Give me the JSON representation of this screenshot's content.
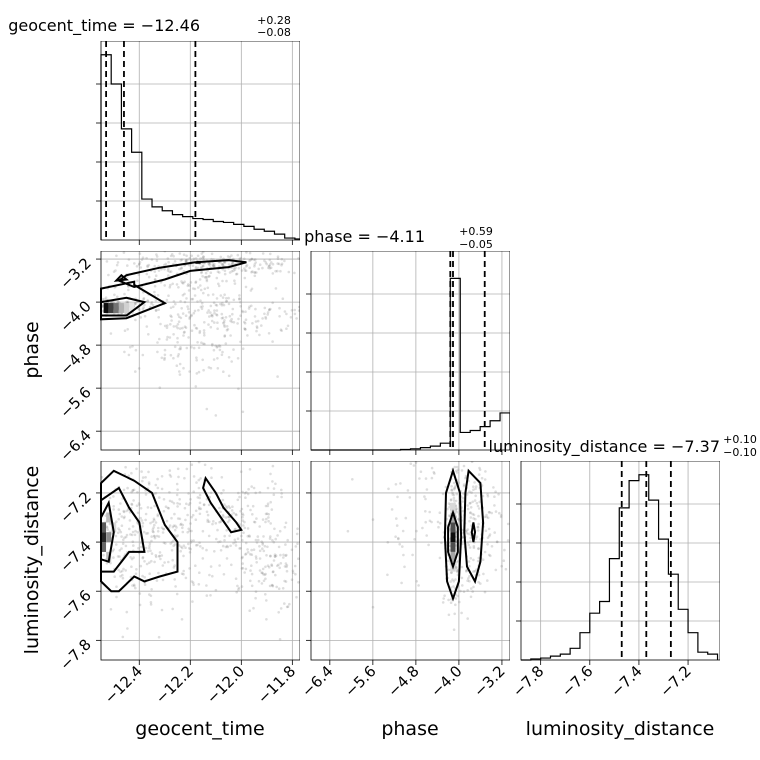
{
  "chart_data": {
    "type": "corner",
    "parameters": [
      "geocent_time",
      "phase",
      "luminosity_distance"
    ],
    "axis_labels": {
      "geocent_time": "geocent_time",
      "phase": "phase",
      "luminosity_distance": "luminosity_distance"
    },
    "ranges": {
      "geocent_time": [
        -12.55,
        -11.77
      ],
      "phase": [
        -6.75,
        -3.05
      ],
      "luminosity_distance": [
        -7.88,
        -7.07
      ]
    },
    "ticks": {
      "geocent_time": [
        -12.4,
        -12.2,
        -12.0,
        -11.8
      ],
      "phase": [
        -6.4,
        -5.6,
        -4.8,
        -4.0,
        -3.2
      ],
      "luminosity_distance": [
        -7.8,
        -7.6,
        -7.4,
        -7.2
      ]
    },
    "tick_labels": {
      "geocent_time": [
        "−12.4",
        "−12.2",
        "−12.0",
        "−11.8"
      ],
      "phase": [
        "−6.4",
        "−5.6",
        "−4.8",
        "−4.0",
        "−3.2"
      ],
      "luminosity_distance": [
        "−7.8",
        "−7.6",
        "−7.4",
        "−7.2"
      ]
    },
    "titles": {
      "geocent_time": {
        "prefix": "geocent_time = −12.46",
        "plus": "+0.28",
        "minus": "−0.08"
      },
      "phase": {
        "prefix": "phase = −4.11",
        "plus": "+0.59",
        "minus": "−0.05"
      },
      "luminosity_distance": {
        "prefix": "luminosity_distance = −7.37",
        "plus": "+0.10",
        "minus": "−0.10"
      }
    },
    "quantiles": {
      "geocent_time": [
        -12.53,
        -12.46,
        -12.18
      ],
      "phase": [
        -4.16,
        -4.11,
        -3.52
      ],
      "luminosity_distance": [
        -7.47,
        -7.37,
        -7.27
      ]
    },
    "histograms": {
      "geocent_time": {
        "edges": [
          -12.55,
          -12.53,
          -12.51,
          -12.49,
          -12.47,
          -12.45,
          -12.43,
          -12.41,
          -12.39,
          -12.37,
          -12.35,
          -12.33,
          -12.31,
          -12.29,
          -12.27,
          -12.25,
          -12.23,
          -12.21,
          -12.19,
          -12.17,
          -12.15,
          -12.13,
          -12.11,
          -12.09,
          -12.07,
          -12.05,
          -12.03,
          -12.01,
          -11.99,
          -11.97,
          -11.95,
          -11.93,
          -11.91,
          -11.89,
          -11.87,
          -11.85,
          -11.83,
          -11.81,
          -11.79,
          -11.77
        ],
        "counts": [
          0.95,
          0.95,
          0.8,
          0.8,
          0.57,
          0.57,
          0.45,
          0.45,
          0.21,
          0.21,
          0.17,
          0.17,
          0.15,
          0.15,
          0.13,
          0.13,
          0.12,
          0.12,
          0.11,
          0.11,
          0.105,
          0.105,
          0.095,
          0.095,
          0.09,
          0.09,
          0.08,
          0.08,
          0.07,
          0.07,
          0.055,
          0.055,
          0.045,
          0.045,
          0.03,
          0.03,
          0.01,
          0.01,
          0.005
        ]
      },
      "phase": {
        "edges": [
          -6.75,
          -6.565,
          -6.38,
          -6.195,
          -6.01,
          -5.825,
          -5.64,
          -5.455,
          -5.27,
          -5.085,
          -4.9,
          -4.715,
          -4.53,
          -4.345,
          -4.16,
          -3.975,
          -3.79,
          -3.605,
          -3.42,
          -3.235,
          -3.05
        ],
        "counts": [
          0,
          0,
          0,
          0,
          0,
          0,
          0,
          0,
          0,
          0.003,
          0.006,
          0.012,
          0.02,
          0.035,
          0.88,
          0.09,
          0.1,
          0.12,
          0.15,
          0.19
        ]
      },
      "luminosity_distance": {
        "edges": [
          -7.88,
          -7.84,
          -7.8,
          -7.76,
          -7.72,
          -7.68,
          -7.64,
          -7.6,
          -7.56,
          -7.52,
          -7.48,
          -7.44,
          -7.4,
          -7.36,
          -7.32,
          -7.28,
          -7.24,
          -7.2,
          -7.16,
          -7.12,
          -7.08
        ],
        "counts": [
          0.0,
          0.005,
          0.01,
          0.02,
          0.03,
          0.06,
          0.14,
          0.24,
          0.3,
          0.52,
          0.78,
          0.92,
          0.95,
          0.82,
          0.62,
          0.44,
          0.26,
          0.14,
          0.04,
          0.03
        ]
      }
    },
    "density_cells": {
      "geocent_time_phase": [
        {
          "x": -12.53,
          "y": -4.11,
          "v": 0.95
        },
        {
          "x": -12.51,
          "y": -4.11,
          "v": 0.75
        },
        {
          "x": -12.49,
          "y": -4.11,
          "v": 0.55
        },
        {
          "x": -12.47,
          "y": -4.11,
          "v": 0.3
        },
        {
          "x": -12.45,
          "y": -4.11,
          "v": 0.18
        },
        {
          "x": -12.43,
          "y": -4.11,
          "v": 0.1
        }
      ],
      "geocent_time_luminosity_distance": [
        {
          "x": -12.54,
          "y": -7.38,
          "v": 0.85
        },
        {
          "x": -12.54,
          "y": -7.34,
          "v": 0.65
        },
        {
          "x": -12.54,
          "y": -7.42,
          "v": 0.6
        },
        {
          "x": -12.52,
          "y": -7.38,
          "v": 0.45
        },
        {
          "x": -12.52,
          "y": -7.3,
          "v": 0.25
        },
        {
          "x": -12.52,
          "y": -7.46,
          "v": 0.25
        },
        {
          "x": -12.5,
          "y": -7.34,
          "v": 0.15
        }
      ],
      "phase_luminosity_distance": [
        {
          "x": -4.11,
          "y": -7.38,
          "v": 0.95
        },
        {
          "x": -4.11,
          "y": -7.34,
          "v": 0.7
        },
        {
          "x": -4.11,
          "y": -7.42,
          "v": 0.7
        },
        {
          "x": -4.11,
          "y": -7.3,
          "v": 0.35
        },
        {
          "x": -4.11,
          "y": -7.46,
          "v": 0.35
        },
        {
          "x": -4.11,
          "y": -7.26,
          "v": 0.15
        },
        {
          "x": -4.11,
          "y": -7.5,
          "v": 0.15
        }
      ]
    },
    "contours": {
      "geocent_time_phase": [
        [
          [
            -12.55,
            -4.0
          ],
          [
            -12.45,
            -3.92
          ],
          [
            -12.38,
            -4.0
          ],
          [
            -12.45,
            -4.25
          ],
          [
            -12.55,
            -4.25
          ]
        ],
        [
          [
            -12.55,
            -3.75
          ],
          [
            -12.42,
            -3.62
          ],
          [
            -12.42,
            -3.68
          ],
          [
            -12.3,
            -4.02
          ],
          [
            -12.45,
            -4.3
          ],
          [
            -12.55,
            -4.32
          ]
        ],
        [
          [
            -12.45,
            -3.5
          ],
          [
            -12.32,
            -3.36
          ],
          [
            -12.18,
            -3.26
          ],
          [
            -12.05,
            -3.22
          ],
          [
            -11.98,
            -3.26
          ],
          [
            -12.05,
            -3.35
          ],
          [
            -12.2,
            -3.42
          ],
          [
            -12.3,
            -3.58
          ],
          [
            -12.42,
            -3.72
          ],
          [
            -12.48,
            -3.6
          ]
        ],
        [
          [
            -12.49,
            -3.6
          ],
          [
            -12.47,
            -3.5
          ],
          [
            -12.45,
            -3.58
          ]
        ],
        [
          [
            -12.18,
            -3.27
          ],
          [
            -12.17,
            -3.25
          ],
          [
            -12.16,
            -3.27
          ]
        ]
      ],
      "geocent_time_luminosity_distance": [
        [
          [
            -12.55,
            -7.3
          ],
          [
            -12.52,
            -7.24
          ],
          [
            -12.5,
            -7.36
          ],
          [
            -12.52,
            -7.48
          ],
          [
            -12.55,
            -7.47
          ]
        ],
        [
          [
            -12.55,
            -7.23
          ],
          [
            -12.48,
            -7.18
          ],
          [
            -12.44,
            -7.26
          ],
          [
            -12.4,
            -7.32
          ],
          [
            -12.38,
            -7.44
          ],
          [
            -12.44,
            -7.44
          ],
          [
            -12.5,
            -7.52
          ],
          [
            -12.55,
            -7.52
          ]
        ],
        [
          [
            -12.55,
            -7.16
          ],
          [
            -12.5,
            -7.11
          ],
          [
            -12.42,
            -7.15
          ],
          [
            -12.35,
            -7.2
          ],
          [
            -12.3,
            -7.33
          ],
          [
            -12.25,
            -7.4
          ],
          [
            -12.25,
            -7.52
          ],
          [
            -12.32,
            -7.54
          ],
          [
            -12.38,
            -7.56
          ],
          [
            -12.42,
            -7.54
          ],
          [
            -12.48,
            -7.6
          ],
          [
            -12.51,
            -7.6
          ],
          [
            -12.55,
            -7.56
          ]
        ],
        [
          [
            -12.14,
            -7.14
          ],
          [
            -12.1,
            -7.2
          ],
          [
            -12.07,
            -7.26
          ],
          [
            -12.02,
            -7.32
          ],
          [
            -12.0,
            -7.35
          ],
          [
            -12.04,
            -7.36
          ],
          [
            -12.08,
            -7.3
          ],
          [
            -12.12,
            -7.24
          ],
          [
            -12.15,
            -7.18
          ]
        ]
      ],
      "phase_luminosity_distance": [
        [
          [
            -4.11,
            -7.28
          ],
          [
            -4.02,
            -7.34
          ],
          [
            -4.02,
            -7.44
          ],
          [
            -4.11,
            -7.5
          ],
          [
            -4.2,
            -7.44
          ],
          [
            -4.2,
            -7.34
          ]
        ],
        [
          [
            -4.11,
            -7.11
          ],
          [
            -3.98,
            -7.2
          ],
          [
            -3.96,
            -7.38
          ],
          [
            -4.0,
            -7.56
          ],
          [
            -4.11,
            -7.63
          ],
          [
            -4.22,
            -7.56
          ],
          [
            -4.26,
            -7.38
          ],
          [
            -4.24,
            -7.2
          ]
        ],
        [
          [
            -3.82,
            -7.11
          ],
          [
            -3.6,
            -7.16
          ],
          [
            -3.55,
            -7.32
          ],
          [
            -3.6,
            -7.48
          ],
          [
            -3.7,
            -7.56
          ],
          [
            -3.85,
            -7.5
          ],
          [
            -3.9,
            -7.36
          ],
          [
            -3.88,
            -7.2
          ]
        ],
        [
          [
            -3.73,
            -7.32
          ],
          [
            -3.7,
            -7.36
          ],
          [
            -3.73,
            -7.4
          ],
          [
            -3.76,
            -7.36
          ]
        ]
      ]
    },
    "scatter_clouds": {
      "geocent_time_phase": [
        {
          "cx": -12.1,
          "cy": -3.3,
          "sx": 0.18,
          "sy": 0.12,
          "n": 260
        },
        {
          "cx": -12.3,
          "cy": -3.85,
          "sx": 0.16,
          "sy": 0.25,
          "n": 120
        },
        {
          "cx": -12.2,
          "cy": -4.6,
          "sx": 0.14,
          "sy": 0.45,
          "n": 160
        },
        {
          "cx": -12.0,
          "cy": -4.2,
          "sx": 0.18,
          "sy": 0.2,
          "n": 120
        },
        {
          "cx": -12.5,
          "cy": -4.1,
          "sx": 0.05,
          "sy": 0.08,
          "n": 200
        }
      ],
      "geocent_time_luminosity_distance": [
        {
          "cx": -12.4,
          "cy": -7.38,
          "sx": 0.1,
          "sy": 0.14,
          "n": 300
        },
        {
          "cx": -12.1,
          "cy": -7.3,
          "sx": 0.15,
          "sy": 0.12,
          "n": 280
        },
        {
          "cx": -11.9,
          "cy": -7.48,
          "sx": 0.08,
          "sy": 0.1,
          "n": 140
        }
      ],
      "phase_luminosity_distance": [
        {
          "cx": -3.7,
          "cy": -7.35,
          "sx": 0.25,
          "sy": 0.13,
          "n": 220
        },
        {
          "cx": -4.11,
          "cy": -7.38,
          "sx": 0.08,
          "sy": 0.13,
          "n": 180
        },
        {
          "cx": -4.6,
          "cy": -7.3,
          "sx": 0.5,
          "sy": 0.15,
          "n": 80
        }
      ]
    }
  }
}
